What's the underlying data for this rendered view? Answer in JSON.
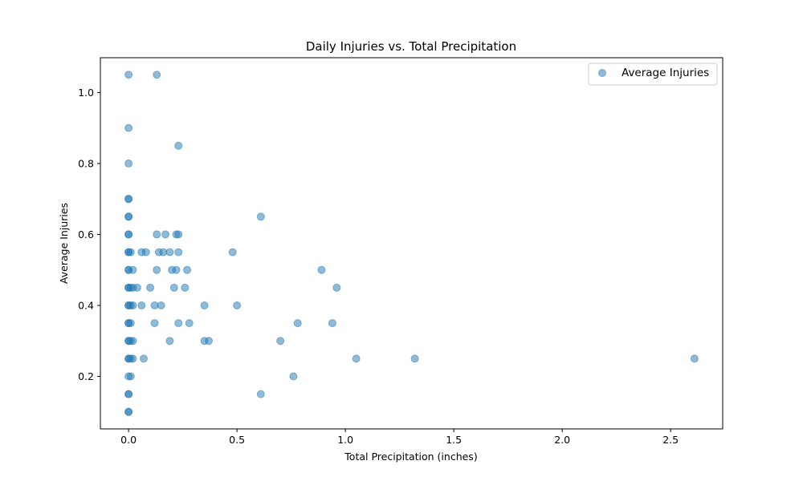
{
  "chart_data": {
    "type": "scatter",
    "title": "Daily Injuries vs. Total Precipitation",
    "xlabel": "Total Precipitation (inches)",
    "ylabel": "Average Injuries",
    "xlim": [
      -0.13,
      2.74
    ],
    "ylim": [
      0.052,
      1.098
    ],
    "xticks": [
      0.0,
      0.5,
      1.0,
      1.5,
      2.0,
      2.5
    ],
    "xtick_labels": [
      "0.0",
      "0.5",
      "1.0",
      "1.5",
      "2.0",
      "2.5"
    ],
    "yticks": [
      0.2,
      0.4,
      0.6,
      0.8,
      1.0
    ],
    "ytick_labels": [
      "0.2",
      "0.4",
      "0.6",
      "0.8",
      "1.0"
    ],
    "grid": false,
    "legend": {
      "position": "top-right",
      "entries": [
        "Average Injuries"
      ]
    },
    "series": [
      {
        "name": "Average Injuries",
        "color": "#1f77b4",
        "alpha": 0.5,
        "points": [
          [
            0.0,
            1.05
          ],
          [
            0.0,
            0.9
          ],
          [
            0.0,
            0.8
          ],
          [
            0.0,
            0.7
          ],
          [
            0.0,
            0.7
          ],
          [
            0.0,
            0.65
          ],
          [
            0.0,
            0.65
          ],
          [
            0.0,
            0.6
          ],
          [
            0.0,
            0.6
          ],
          [
            0.0,
            0.55
          ],
          [
            0.0,
            0.55
          ],
          [
            0.0,
            0.5
          ],
          [
            0.0,
            0.5
          ],
          [
            0.0,
            0.45
          ],
          [
            0.0,
            0.45
          ],
          [
            0.0,
            0.4
          ],
          [
            0.0,
            0.4
          ],
          [
            0.0,
            0.35
          ],
          [
            0.0,
            0.35
          ],
          [
            0.0,
            0.3
          ],
          [
            0.0,
            0.3
          ],
          [
            0.0,
            0.25
          ],
          [
            0.0,
            0.25
          ],
          [
            0.0,
            0.2
          ],
          [
            0.0,
            0.15
          ],
          [
            0.0,
            0.15
          ],
          [
            0.0,
            0.1
          ],
          [
            0.0,
            0.1
          ],
          [
            0.01,
            0.55
          ],
          [
            0.01,
            0.45
          ],
          [
            0.01,
            0.4
          ],
          [
            0.01,
            0.35
          ],
          [
            0.01,
            0.3
          ],
          [
            0.01,
            0.25
          ],
          [
            0.01,
            0.2
          ],
          [
            0.02,
            0.5
          ],
          [
            0.02,
            0.45
          ],
          [
            0.02,
            0.4
          ],
          [
            0.02,
            0.3
          ],
          [
            0.02,
            0.25
          ],
          [
            0.04,
            0.45
          ],
          [
            0.06,
            0.55
          ],
          [
            0.06,
            0.4
          ],
          [
            0.07,
            0.25
          ],
          [
            0.08,
            0.55
          ],
          [
            0.1,
            0.45
          ],
          [
            0.12,
            0.4
          ],
          [
            0.12,
            0.35
          ],
          [
            0.13,
            1.05
          ],
          [
            0.13,
            0.6
          ],
          [
            0.13,
            0.5
          ],
          [
            0.14,
            0.55
          ],
          [
            0.15,
            0.4
          ],
          [
            0.16,
            0.55
          ],
          [
            0.17,
            0.6
          ],
          [
            0.19,
            0.55
          ],
          [
            0.19,
            0.3
          ],
          [
            0.2,
            0.5
          ],
          [
            0.21,
            0.45
          ],
          [
            0.22,
            0.6
          ],
          [
            0.22,
            0.5
          ],
          [
            0.23,
            0.85
          ],
          [
            0.23,
            0.6
          ],
          [
            0.23,
            0.55
          ],
          [
            0.23,
            0.35
          ],
          [
            0.26,
            0.45
          ],
          [
            0.27,
            0.5
          ],
          [
            0.28,
            0.35
          ],
          [
            0.35,
            0.3
          ],
          [
            0.35,
            0.4
          ],
          [
            0.37,
            0.3
          ],
          [
            0.48,
            0.55
          ],
          [
            0.5,
            0.4
          ],
          [
            0.61,
            0.65
          ],
          [
            0.61,
            0.15
          ],
          [
            0.7,
            0.3
          ],
          [
            0.76,
            0.2
          ],
          [
            0.78,
            0.35
          ],
          [
            0.89,
            0.5
          ],
          [
            0.94,
            0.35
          ],
          [
            0.96,
            0.45
          ],
          [
            1.05,
            0.25
          ],
          [
            1.32,
            0.25
          ],
          [
            2.61,
            0.25
          ]
        ]
      }
    ]
  }
}
